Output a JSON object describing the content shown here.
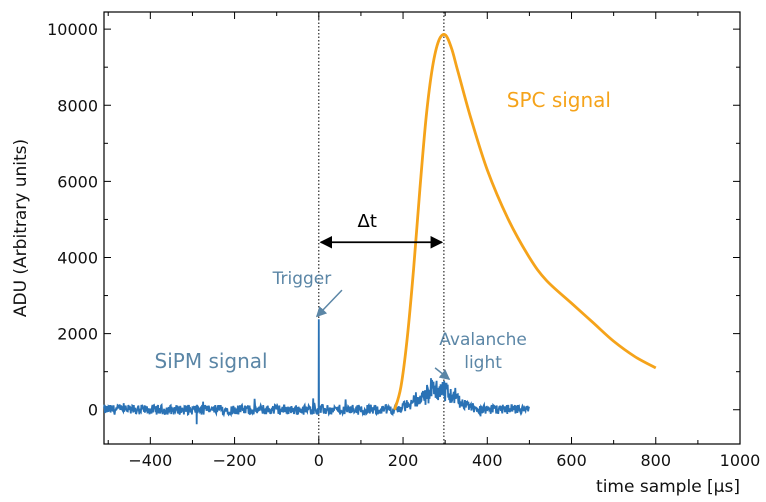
{
  "chart_data": {
    "type": "line",
    "title": "",
    "xlabel": "time sample [μs]",
    "ylabel": "ADU (Arbitrary units)",
    "xlim": [
      -510,
      1000
    ],
    "ylim": [
      -900,
      10450
    ],
    "xticks": [
      -400,
      -200,
      0,
      200,
      400,
      600,
      800,
      1000
    ],
    "yticks": [
      0,
      2000,
      4000,
      6000,
      8000,
      10000
    ],
    "grid": false,
    "colors": {
      "sipm": "#2a72b5",
      "spc": "#f5a31a",
      "annotation": "#5b86a6",
      "arrow": "#000000"
    },
    "series": [
      {
        "name": "SPC signal",
        "x": [
          180,
          195,
          210,
          225,
          240,
          255,
          270,
          285,
          300,
          315,
          330,
          360,
          400,
          450,
          500,
          540,
          600,
          650,
          700,
          750,
          800
        ],
        "y": [
          0,
          600,
          1900,
          3700,
          5800,
          7700,
          9000,
          9700,
          9850,
          9500,
          8900,
          7700,
          6300,
          5000,
          4000,
          3400,
          2800,
          2300,
          1800,
          1400,
          1100
        ]
      },
      {
        "name": "SiPM signal",
        "x_range": [
          -510,
          500
        ],
        "baseline": 0,
        "noise_amplitude": 130,
        "peaks": [
          {
            "x": 0,
            "y": 2380
          },
          {
            "x": -290,
            "y": -380
          }
        ],
        "bump": {
          "center": 280,
          "width": 55,
          "height": 550
        }
      }
    ],
    "vlines": [
      0,
      297
    ],
    "annotations": [
      {
        "text": "Trigger",
        "x": -40,
        "y": 3300,
        "arrow_to": {
          "x": -5,
          "y": 2450
        }
      },
      {
        "text": "Avalanche",
        "x": 390,
        "y": 1700
      },
      {
        "text": "light",
        "x": 390,
        "y": 1100,
        "arrow_to": {
          "x": 310,
          "y": 800
        }
      },
      {
        "text": "Δt",
        "x": 115,
        "y": 4800
      }
    ],
    "delta_t_arrow": {
      "x_start": 0,
      "x_end": 297,
      "y": 4400
    }
  }
}
